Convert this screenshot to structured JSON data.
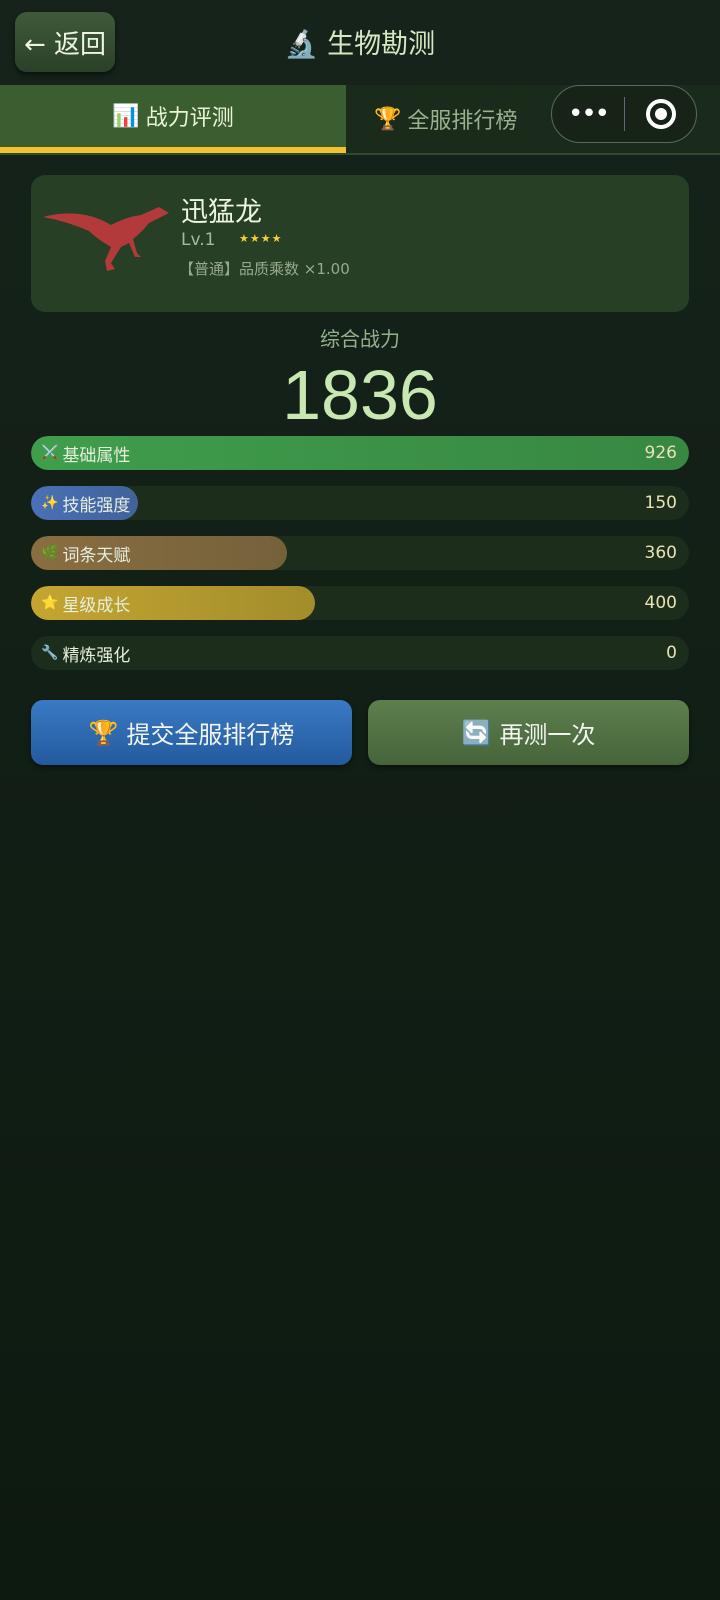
{
  "header": {
    "back_label": "← 返回",
    "title": "生物勘测",
    "title_icon": "microscope-icon"
  },
  "tabs": [
    {
      "label": "战力评测",
      "icon": "bar-chart-icon",
      "active": true
    },
    {
      "label": "全服排行榜",
      "icon": "trophy-icon",
      "active": false
    }
  ],
  "capsule": {
    "more": "•••",
    "close_icon": "target-icon"
  },
  "creature": {
    "name": "迅猛龙",
    "level": "Lv.1",
    "stars": "★★★★",
    "star_count": 4,
    "quality": "【普通】品质乘数 ×1.00"
  },
  "power": {
    "label": "综合战力",
    "value": "1836"
  },
  "bars": [
    {
      "label": "基础属性",
      "icon": "⚔️",
      "value": "926",
      "fraction": 1.0,
      "color": "#3f9e4c"
    },
    {
      "label": "技能强度",
      "icon": "✨",
      "value": "150",
      "fraction": 0.162,
      "color": "#4a70b8"
    },
    {
      "label": "词条天赋",
      "icon": "🌿",
      "value": "360",
      "fraction": 0.389,
      "color": "#8a6e42"
    },
    {
      "label": "星级成长",
      "icon": "⭐",
      "value": "400",
      "fraction": 0.432,
      "color": "#c4a530"
    },
    {
      "label": "精炼强化",
      "icon": "🔧",
      "value": "0",
      "fraction": 0,
      "color": "#6a6a6a"
    }
  ],
  "buttons": {
    "submit": "提交全服排行榜",
    "retry": "再测一次"
  },
  "colors": {
    "accent": "#f2c230",
    "tab_active": "#3a5e30",
    "submit": "#2f6bb0",
    "retry": "#4e6e40"
  }
}
